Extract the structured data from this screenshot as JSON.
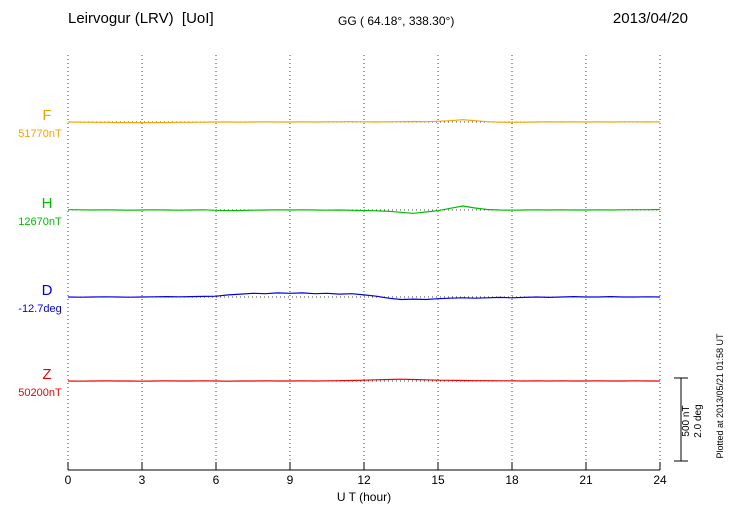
{
  "header": {
    "title": "Leirvogur (LRV)  [UoI]",
    "gg_coords": "GG ( 64.18°, 338.30°)",
    "date": "2013/04/20"
  },
  "xaxis": {
    "label": "U T (hour)",
    "ticks": [
      0,
      3,
      6,
      9,
      12,
      15,
      18,
      21,
      24
    ]
  },
  "scalebar": {
    "nt_label": "500 nT",
    "deg_label": "2.0 deg"
  },
  "plot_note": "Plotted at 2013/05/21 01:58 UT",
  "colors": {
    "F": "#f5a300",
    "H": "#00bc00",
    "D": "#0000ee",
    "Z": "#ee0000",
    "axis": "#000000",
    "grid": "#444444"
  },
  "chart_data": {
    "type": "line",
    "title": "Leirvogur (LRV) magnetogram 2013/04/20",
    "xlabel": "U T (hour)",
    "x_range": [
      0,
      24
    ],
    "x_step_hours": 0.5,
    "grid": "dotted vertical lines every 3 hours, dotted horizontal baseline per trace",
    "scale": {
      "nT_per_bar": 500,
      "deg_per_bar": 2.0
    },
    "x": [
      0,
      0.5,
      1,
      1.5,
      2,
      2.5,
      3,
      3.5,
      4,
      4.5,
      5,
      5.5,
      6,
      6.5,
      7,
      7.5,
      8,
      8.5,
      9,
      9.5,
      10,
      10.5,
      11,
      11.5,
      12,
      12.5,
      13,
      13.5,
      14,
      14.5,
      15,
      15.5,
      16,
      16.5,
      17,
      17.5,
      18,
      18.5,
      19,
      19.5,
      20,
      20.5,
      21,
      21.5,
      22,
      22.5,
      23,
      23.5,
      24
    ],
    "series": [
      {
        "name": "F",
        "baseline_label": "51770nT",
        "unit": "nT",
        "color": "#f5a300",
        "offsets": [
          0,
          -1,
          -2,
          -2,
          -3,
          -3,
          -4,
          -3,
          -3,
          -2,
          -2,
          -1,
          0,
          0,
          -1,
          0,
          1,
          0,
          0,
          1,
          0,
          1,
          1,
          2,
          1,
          0,
          1,
          2,
          3,
          2,
          4,
          8,
          14,
          8,
          2,
          -1,
          -2,
          -1,
          0,
          1,
          0,
          1,
          0,
          1,
          0,
          1,
          1,
          0,
          1
        ]
      },
      {
        "name": "H",
        "baseline_label": "12670nT",
        "unit": "nT",
        "color": "#00bc00",
        "offsets": [
          2,
          1,
          0,
          1,
          0,
          -1,
          0,
          1,
          0,
          -1,
          0,
          1,
          -2,
          -4,
          -3,
          -1,
          0,
          1,
          0,
          1,
          0,
          -1,
          0,
          -2,
          -3,
          -5,
          -8,
          -14,
          -20,
          -12,
          -4,
          10,
          24,
          12,
          3,
          0,
          -1,
          0,
          1,
          0,
          1,
          0,
          0,
          1,
          0,
          1,
          2,
          2,
          3
        ]
      },
      {
        "name": "D",
        "baseline_label": "-12.7deg",
        "unit": "deg",
        "color": "#0000ee",
        "offsets": [
          0,
          -0.005,
          0,
          0.005,
          0,
          -0.005,
          0,
          0.005,
          0.01,
          0.005,
          0.01,
          0.015,
          0.02,
          0.05,
          0.07,
          0.09,
          0.08,
          0.1,
          0.09,
          0.1,
          0.08,
          0.09,
          0.07,
          0.08,
          0.05,
          0.02,
          -0.03,
          -0.06,
          -0.05,
          -0.06,
          -0.04,
          -0.03,
          -0.02,
          -0.03,
          -0.02,
          -0.01,
          -0.02,
          -0.01,
          0,
          -0.01,
          0,
          0.01,
          0,
          0,
          0.01,
          0,
          0,
          0.005,
          0
        ]
      },
      {
        "name": "Z",
        "baseline_label": "50200nT",
        "unit": "nT",
        "color": "#ee0000",
        "offsets": [
          0,
          -1,
          0,
          1,
          0,
          0,
          -1,
          0,
          1,
          0,
          0,
          1,
          0,
          -1,
          0,
          0,
          1,
          0,
          0,
          1,
          0,
          1,
          2,
          3,
          5,
          7,
          9,
          11,
          9,
          7,
          5,
          4,
          3,
          2,
          2,
          1,
          1,
          0,
          1,
          0,
          1,
          0,
          0,
          1,
          0,
          0,
          1,
          0,
          0
        ]
      }
    ]
  }
}
